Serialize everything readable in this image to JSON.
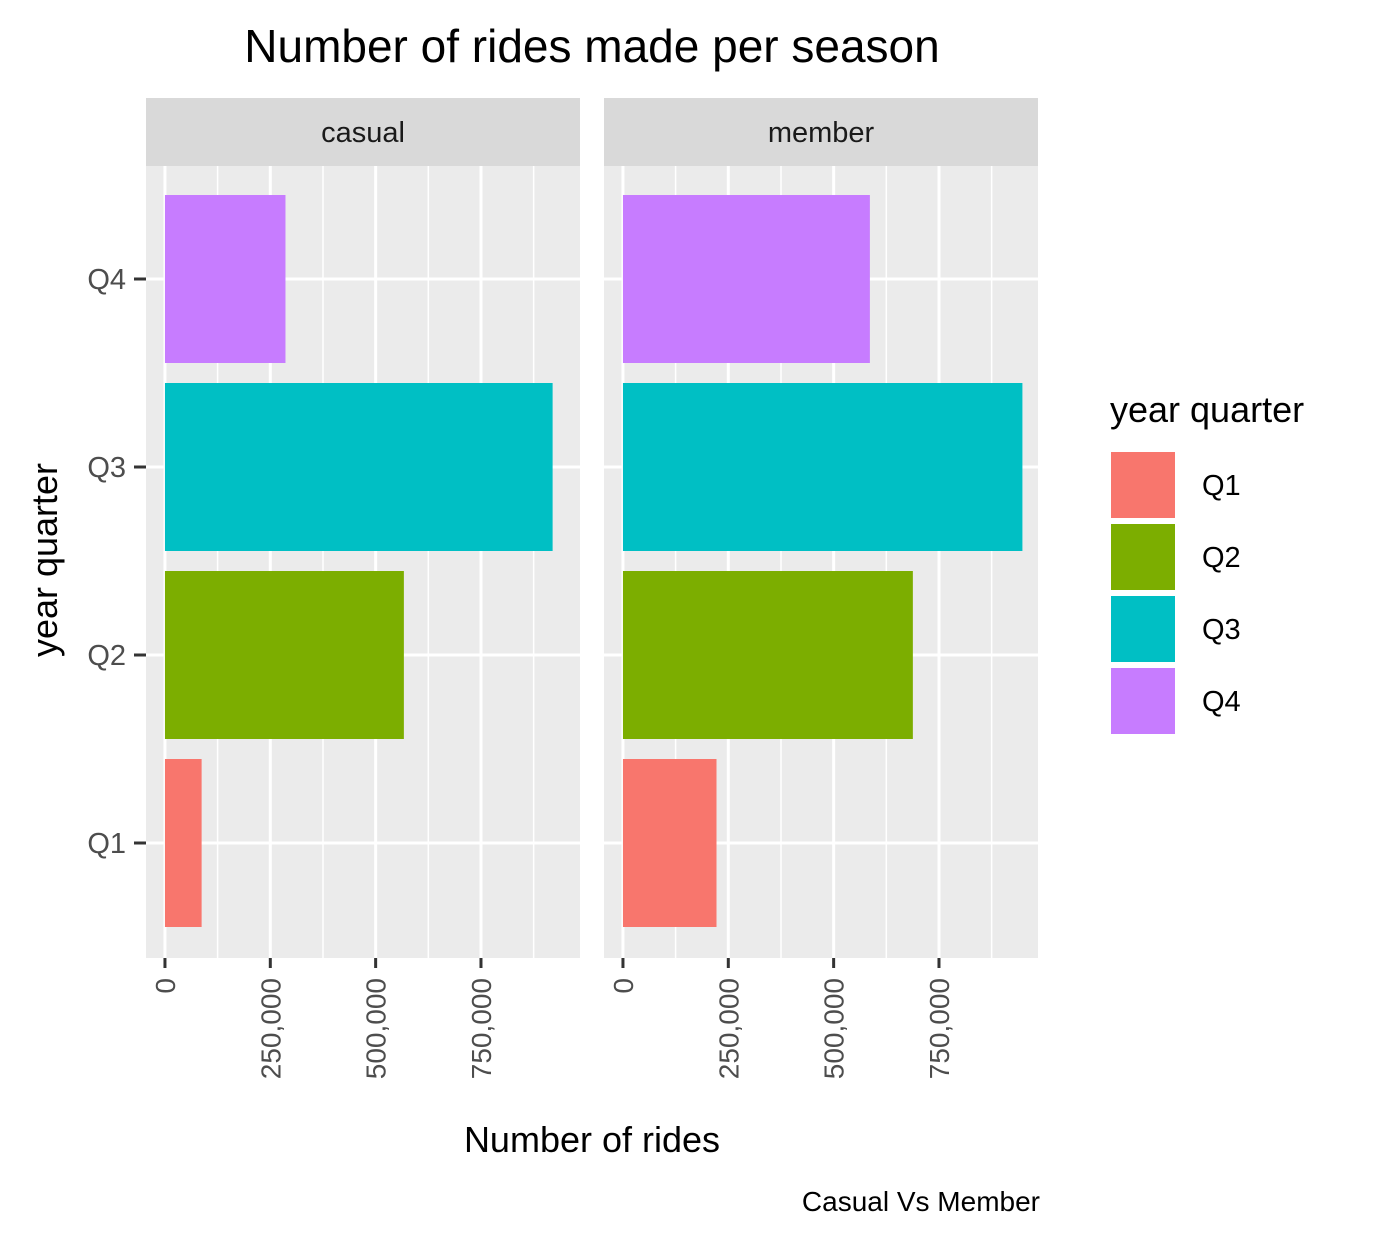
{
  "chart_data": {
    "type": "bar",
    "orientation": "horizontal",
    "title": "Number of rides made per season",
    "xlabel": "Number of rides",
    "ylabel": "year quarter",
    "caption": "Casual Vs Member",
    "categories": [
      "Q1",
      "Q2",
      "Q3",
      "Q4"
    ],
    "xticks": [
      0,
      250000,
      500000,
      750000
    ],
    "xtick_labels": [
      "0",
      "250,000",
      "500,000",
      "750,000"
    ],
    "xlim": [
      -45000,
      985000
    ],
    "grid": true,
    "panels": [
      {
        "name": "casual",
        "values": [
          87000,
          567000,
          920000,
          286000
        ]
      },
      {
        "name": "member",
        "values": [
          222000,
          688000,
          948000,
          586000
        ]
      }
    ],
    "legend": {
      "title": "year quarter",
      "position": "right",
      "entries": [
        "Q1",
        "Q2",
        "Q3",
        "Q4"
      ]
    },
    "colors": {
      "Q1": "#F8766D",
      "Q2": "#7CAE00",
      "Q3": "#00BFC4",
      "Q4": "#C77CFF",
      "panel_background": "#EBEBEB",
      "strip_background": "#D9D9D9",
      "grid_line": "#FFFFFF",
      "axis_text": "#4D4D4D"
    }
  }
}
